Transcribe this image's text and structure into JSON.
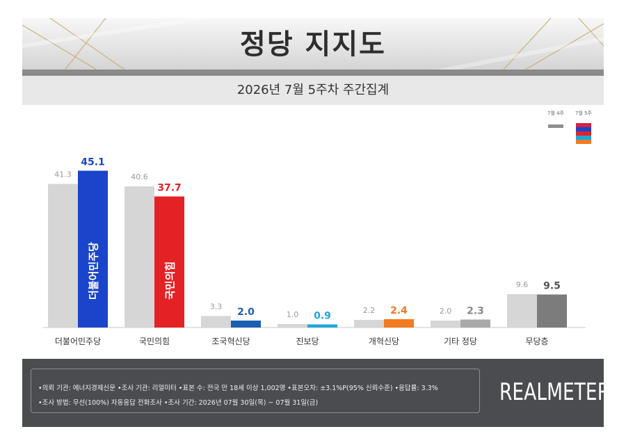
{
  "header": {
    "title": "정당 지지도",
    "subtitle": "2026년 7월 5주차 주간집계"
  },
  "chart_data": {
    "type": "bar",
    "categories": [
      "더불어민주당",
      "국민의힘",
      "조국혁신당",
      "진보당",
      "개혁신당",
      "기타 정당",
      "무당층"
    ],
    "series": [
      {
        "name": "7월 4주",
        "values": [
          41.3,
          40.6,
          3.3,
          1.0,
          2.2,
          2.0,
          9.6
        ]
      },
      {
        "name": "7월 5주",
        "values": [
          45.1,
          37.7,
          2.0,
          0.9,
          2.4,
          2.3,
          9.5
        ]
      }
    ],
    "prev_label_texts": [
      "41.3",
      "40.6",
      "3.3",
      "1.0",
      "2.2",
      "2.0",
      "9.6"
    ],
    "curr_label_texts": [
      "45.1",
      "37.7",
      "2.0",
      "0.9",
      "2.4",
      "2.3",
      "9.5"
    ],
    "bar_inner_labels": [
      "더불어민주당",
      "국민의힘"
    ],
    "ylim": [
      0,
      50
    ],
    "grid": false,
    "legend": "top-right",
    "colors": {
      "prev": "#d6d6d6",
      "curr": [
        "#1a44c9",
        "#e42125",
        "#1a5fb4",
        "#1fa6dc",
        "#f07b21",
        "#a9a9a9",
        "#7c7c7c"
      ],
      "curr_label": [
        "#1a44c9",
        "#e42125",
        "#1a5fb4",
        "#1fa6dc",
        "#f07b21",
        "#888888",
        "#555555"
      ],
      "legend_swatch_curr": [
        "#d1234a",
        "#1a44c9",
        "#e42125",
        "#1fa6dc",
        "#f07b21"
      ]
    }
  },
  "footer": {
    "notes": [
      "•의뢰 기관: 에너지경제신문 •조사 기관: 리얼미터 •표본 수: 전국 만 18세 이상 1,002명 •표본오차: ±3.1%P(95% 신뢰수준) •응답률: 3.3%",
      "•조사 방법: 무선(100%) 자동응답 전화조사 •조사 기간: 2026년 07월 30일(목) ~ 07월 31일(금)"
    ],
    "brand": "REALMETER"
  }
}
